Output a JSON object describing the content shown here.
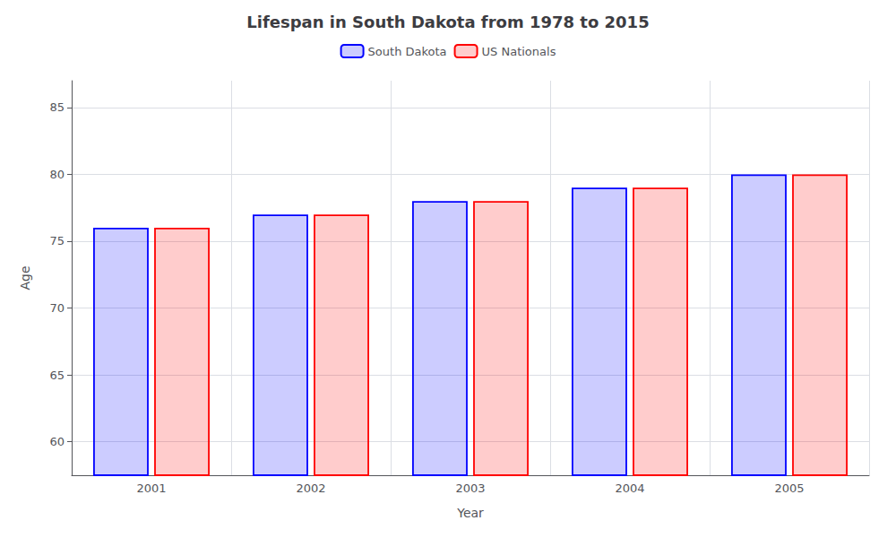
{
  "chart_data": {
    "type": "bar",
    "title": "Lifespan in South Dakota from 1978 to 2015",
    "xlabel": "Year",
    "ylabel": "Age",
    "categories": [
      "2001",
      "2002",
      "2003",
      "2004",
      "2005"
    ],
    "series": [
      {
        "name": "South Dakota",
        "color": "#0000ff",
        "values": [
          76.0,
          77.0,
          78.0,
          79.0,
          80.0
        ]
      },
      {
        "name": "US Nationals",
        "color": "#ff0000",
        "values": [
          76.0,
          77.0,
          78.0,
          79.0,
          80.0
        ]
      }
    ],
    "ylim": [
      57.5,
      87.0
    ],
    "yticks": [
      60,
      65,
      70,
      75,
      80,
      85
    ],
    "grid": true,
    "legend": "top"
  }
}
